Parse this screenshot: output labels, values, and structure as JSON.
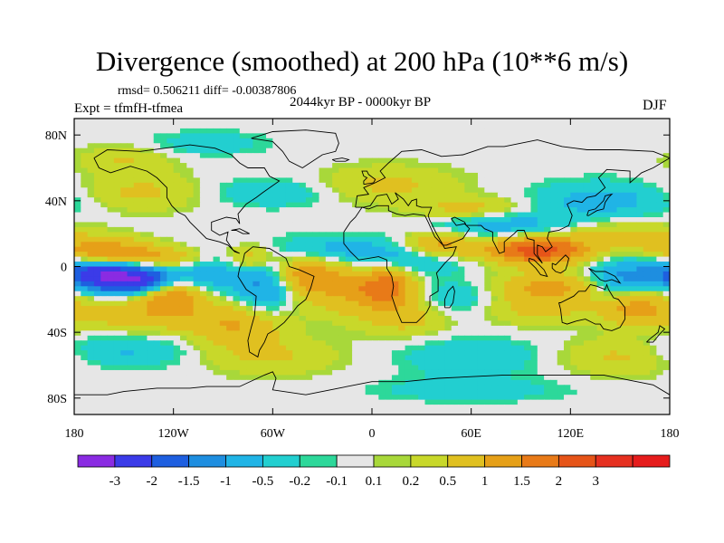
{
  "chart_data": {
    "type": "heatmap",
    "title": "Divergence (smoothed) at 200 hPa (10**6 m/s)",
    "stats_label": "rmsd= 0.506211 diff= -0.00387806",
    "period_label": "2044kyr BP - 0000kyr BP",
    "experiment_label": "Expt = tfmfH-tfmea",
    "season_label": "DJF",
    "x_axis": {
      "range": [
        -180,
        180
      ],
      "ticks": [
        {
          "value": -180,
          "label": "180"
        },
        {
          "value": -120,
          "label": "120W"
        },
        {
          "value": -60,
          "label": "60W"
        },
        {
          "value": 0,
          "label": "0"
        },
        {
          "value": 60,
          "label": "60E"
        },
        {
          "value": 120,
          "label": "120E"
        },
        {
          "value": 180,
          "label": "180"
        }
      ]
    },
    "y_axis": {
      "range": [
        -90,
        90
      ],
      "ticks": [
        {
          "value": 80,
          "label": "80N"
        },
        {
          "value": 40,
          "label": "40N"
        },
        {
          "value": 0,
          "label": "0"
        },
        {
          "value": -40,
          "label": "40S"
        },
        {
          "value": -80,
          "label": "80S"
        }
      ]
    },
    "colorbar": {
      "colors": [
        "#8a2be2",
        "#3b3be8",
        "#1e5fe0",
        "#1e8ee0",
        "#20b4e6",
        "#22cfd0",
        "#2dd89a",
        "#e6e6e6",
        "#a8d83a",
        "#c8d82a",
        "#e0c020",
        "#e6a018",
        "#e87a18",
        "#e65418",
        "#e63020",
        "#e61c1c"
      ],
      "labels": [
        "-3",
        "-2",
        "-1.5",
        "-1",
        "-0.5",
        "-0.2",
        "-0.1",
        "0.1",
        "0.2",
        "0.5",
        "1",
        "1.5",
        "2",
        "3"
      ],
      "boundaries": [
        -3,
        -2,
        -1.5,
        -1,
        -0.5,
        -0.2,
        -0.1,
        0.1,
        0.2,
        0.5,
        1,
        1.5,
        2,
        3
      ]
    },
    "field_blobs": [
      {
        "lon": -145,
        "lat": -8,
        "slon": 20,
        "slat": 6,
        "amp": -3.2
      },
      {
        "lon": -170,
        "lat": -2,
        "slon": 18,
        "slat": 6,
        "amp": -1.6
      },
      {
        "lon": -135,
        "lat": 5,
        "slon": 28,
        "slat": 5,
        "amp": 1.1
      },
      {
        "lon": -120,
        "lat": -15,
        "slon": 14,
        "slat": 8,
        "amp": 1.7
      },
      {
        "lon": -165,
        "lat": 10,
        "slon": 20,
        "slat": 6,
        "amp": 1.2
      },
      {
        "lon": -140,
        "lat": -30,
        "slon": 30,
        "slat": 9,
        "amp": 0.8
      },
      {
        "lon": -100,
        "lat": -5,
        "slon": 15,
        "slat": 10,
        "amp": -0.9
      },
      {
        "lon": -65,
        "lat": -12,
        "slon": 12,
        "slat": 12,
        "amp": -1.2
      },
      {
        "lon": -72,
        "lat": 5,
        "slon": 10,
        "slat": 6,
        "amp": 0.9
      },
      {
        "lon": -80,
        "lat": -35,
        "slon": 20,
        "slat": 10,
        "amp": 1.0
      },
      {
        "lon": -40,
        "lat": -5,
        "slon": 14,
        "slat": 8,
        "amp": 1.3
      },
      {
        "lon": -15,
        "lat": -15,
        "slon": 18,
        "slat": 10,
        "amp": 0.9
      },
      {
        "lon": 10,
        "lat": -12,
        "slon": 12,
        "slat": 8,
        "amp": 1.6
      },
      {
        "lon": -20,
        "lat": 10,
        "slon": 25,
        "slat": 6,
        "amp": -0.7
      },
      {
        "lon": 30,
        "lat": 5,
        "slon": 20,
        "slat": 6,
        "amp": -0.9
      },
      {
        "lon": 40,
        "lat": 12,
        "slon": 15,
        "slat": 6,
        "amp": 1.4
      },
      {
        "lon": 20,
        "lat": -30,
        "slon": 20,
        "slat": 8,
        "amp": 0.8
      },
      {
        "lon": 50,
        "lat": -20,
        "slon": 20,
        "slat": 8,
        "amp": -0.6
      },
      {
        "lon": 100,
        "lat": 10,
        "slon": 22,
        "slat": 6,
        "amp": 2.4
      },
      {
        "lon": 80,
        "lat": 25,
        "slon": 30,
        "slat": 6,
        "amp": -0.8
      },
      {
        "lon": 60,
        "lat": 35,
        "slon": 25,
        "slat": 5,
        "amp": 0.7
      },
      {
        "lon": 110,
        "lat": -12,
        "slon": 25,
        "slat": 6,
        "amp": 1.1
      },
      {
        "lon": 100,
        "lat": -25,
        "slon": 25,
        "slat": 7,
        "amp": 0.7
      },
      {
        "lon": 150,
        "lat": -8,
        "slon": 15,
        "slat": 8,
        "amp": -1.2
      },
      {
        "lon": 160,
        "lat": -25,
        "slon": 15,
        "slat": 8,
        "amp": 1.2
      },
      {
        "lon": 150,
        "lat": 20,
        "slon": 25,
        "slat": 6,
        "amp": 0.6
      },
      {
        "lon": 140,
        "lat": 40,
        "slon": 30,
        "slat": 8,
        "amp": -0.7
      },
      {
        "lon": -140,
        "lat": 45,
        "slon": 25,
        "slat": 8,
        "amp": 0.6
      },
      {
        "lon": -60,
        "lat": 45,
        "slon": 25,
        "slat": 6,
        "amp": -0.5
      },
      {
        "lon": 10,
        "lat": 50,
        "slon": 30,
        "slat": 8,
        "amp": 0.6
      },
      {
        "lon": -150,
        "lat": 65,
        "slon": 20,
        "slat": 6,
        "amp": 0.5
      },
      {
        "lon": -100,
        "lat": 75,
        "slon": 25,
        "slat": 5,
        "amp": -0.4
      },
      {
        "lon": -150,
        "lat": -50,
        "slon": 30,
        "slat": 8,
        "amp": -0.6
      },
      {
        "lon": -60,
        "lat": -55,
        "slon": 30,
        "slat": 8,
        "amp": 0.5
      },
      {
        "lon": 60,
        "lat": -55,
        "slon": 30,
        "slat": 8,
        "amp": -0.5
      },
      {
        "lon": 150,
        "lat": -55,
        "slon": 25,
        "slat": 8,
        "amp": 0.6
      },
      {
        "lon": 60,
        "lat": -75,
        "slon": 40,
        "slat": 5,
        "amp": -0.4
      }
    ]
  }
}
